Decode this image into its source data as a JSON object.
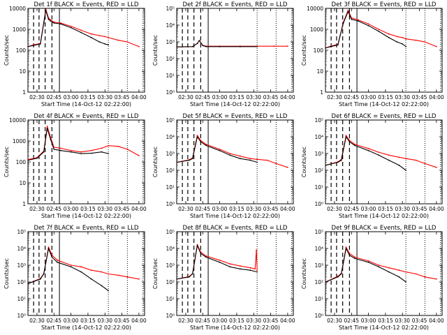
{
  "figure": {
    "title_suffix": "BLACK = Events, RED = LLD",
    "xlabel": "Start Time (14-Oct-12 02:22:00)",
    "ylabel": "Counts/sec",
    "x_ticks": [
      "02:30",
      "02:45",
      "03:00",
      "03:15",
      "03:30",
      "03:45",
      "04:00"
    ],
    "x_tick_hours": [
      2.5,
      2.75,
      3.0,
      3.25,
      3.5,
      3.75,
      4.0
    ],
    "x_range": [
      2.3667,
      4.0833
    ],
    "colors": {
      "events": "#000000",
      "lld": "#ff0000",
      "markers": "#000000"
    },
    "dashed_marker_times": [
      2.45,
      2.53,
      2.62,
      2.72
    ],
    "solid_marker_time": 2.83,
    "dotted_marker_times": [
      3.55,
      3.83,
      4.06
    ],
    "legend": {
      "events": "BLACK = Events",
      "lld": "RED = LLD"
    }
  },
  "chart_data": [
    {
      "type": "line",
      "title": "Det 1f BLACK = Events, RED = LLD",
      "ylim_log": [
        0,
        4
      ],
      "ytick_labels": [
        "1",
        "10",
        "100",
        "1000",
        "10000"
      ],
      "series": [
        {
          "name": "Events",
          "color": "#000000",
          "x": [
            2.37,
            2.45,
            2.55,
            2.6,
            2.63,
            2.67,
            2.7,
            2.75,
            2.85,
            3.0,
            3.15,
            3.3,
            3.42,
            3.5,
            3.55
          ],
          "y": [
            150,
            170,
            200,
            2000,
            8000,
            3000,
            2500,
            2000,
            1800,
            1200,
            700,
            400,
            250,
            200,
            180
          ]
        },
        {
          "name": "LLD",
          "color": "#ff0000",
          "x": [
            2.37,
            2.45,
            2.55,
            2.6,
            2.63,
            2.67,
            2.7,
            2.75,
            2.85,
            3.0,
            3.15,
            3.3,
            3.42,
            3.5,
            3.55,
            3.7,
            3.83,
            4.0
          ],
          "y": [
            150,
            180,
            210,
            2200,
            9000,
            3500,
            2800,
            2200,
            2000,
            1400,
            900,
            600,
            500,
            450,
            400,
            300,
            250,
            150
          ]
        }
      ]
    },
    {
      "type": "line",
      "title": "Det 2f BLACK = Events, RED = LLD",
      "ylim_log": [
        0,
        5
      ],
      "ytick_labels": [
        "10⁰",
        "10¹",
        "10²",
        "10³",
        "10⁴",
        "10⁵"
      ],
      "series": [
        {
          "name": "Events",
          "color": "#000000",
          "x": [
            2.37,
            2.6,
            2.67,
            2.7,
            2.75,
            2.8,
            3.0,
            3.3,
            3.55
          ],
          "y": [
            500,
            520,
            800,
            1200,
            600,
            520,
            520,
            520,
            520
          ]
        },
        {
          "name": "LLD",
          "color": "#ff0000",
          "x": [
            2.37,
            2.6,
            2.67,
            2.7,
            2.75,
            2.8,
            3.0,
            3.3,
            3.55,
            3.8,
            4.0
          ],
          "y": [
            500,
            520,
            800,
            1200,
            620,
            550,
            550,
            550,
            550,
            550,
            550
          ]
        }
      ]
    },
    {
      "type": "line",
      "title": "Det 3f BLACK = Events, RED = LLD",
      "ylim_log": [
        0,
        4
      ],
      "ytick_labels": [
        "1",
        "10",
        "100",
        "1000",
        "10000"
      ],
      "series": [
        {
          "name": "Events",
          "color": "#000000",
          "x": [
            2.37,
            2.45,
            2.55,
            2.63,
            2.7,
            2.75,
            2.85,
            3.0,
            3.15,
            3.3,
            3.42,
            3.5,
            3.55
          ],
          "y": [
            130,
            150,
            180,
            2000,
            7000,
            3000,
            2500,
            1500,
            800,
            400,
            250,
            200,
            150
          ]
        },
        {
          "name": "LLD",
          "color": "#ff0000",
          "x": [
            2.37,
            2.45,
            2.55,
            2.63,
            2.7,
            2.75,
            2.85,
            3.0,
            3.15,
            3.3,
            3.42,
            3.5,
            3.55,
            3.7,
            3.83,
            4.0
          ],
          "y": [
            130,
            160,
            190,
            2200,
            8000,
            3500,
            2800,
            1800,
            1000,
            600,
            450,
            400,
            350,
            300,
            250,
            150
          ]
        }
      ]
    },
    {
      "type": "line",
      "title": "Det 4f BLACK = Events, RED = LLD",
      "ylim_log": [
        0,
        4
      ],
      "ytick_labels": [
        "1",
        "10",
        "100",
        "1000",
        "10000"
      ],
      "series": [
        {
          "name": "Events",
          "color": "#000000",
          "x": [
            2.37,
            2.5,
            2.6,
            2.65,
            2.7,
            2.75,
            2.85,
            3.0,
            3.15,
            3.3,
            3.45,
            3.55
          ],
          "y": [
            120,
            150,
            300,
            4000,
            1200,
            400,
            350,
            300,
            250,
            260,
            300,
            250
          ]
        },
        {
          "name": "LLD",
          "color": "#ff0000",
          "x": [
            2.37,
            2.5,
            2.6,
            2.65,
            2.7,
            2.75,
            2.85,
            3.0,
            3.15,
            3.3,
            3.45,
            3.55,
            3.7,
            3.83,
            4.0
          ],
          "y": [
            130,
            160,
            330,
            5000,
            1500,
            500,
            450,
            350,
            300,
            350,
            450,
            600,
            550,
            400,
            200
          ]
        }
      ]
    },
    {
      "type": "line",
      "title": "Det 5f BLACK = Events, RED = LLD",
      "ylim_log": [
        0,
        5
      ],
      "ytick_labels": [
        "10⁰",
        "10¹",
        "10²",
        "10³",
        "10⁴",
        "10⁵"
      ],
      "series": [
        {
          "name": "Events",
          "color": "#000000",
          "x": [
            2.37,
            2.55,
            2.6,
            2.67,
            2.72,
            2.8,
            3.0,
            3.15,
            3.3,
            3.45,
            3.55
          ],
          "y": [
            300,
            400,
            500,
            10000,
            5000,
            3000,
            1500,
            800,
            500,
            400,
            300
          ]
        },
        {
          "name": "LLD",
          "color": "#ff0000",
          "x": [
            2.37,
            2.55,
            2.6,
            2.67,
            2.72,
            2.8,
            3.0,
            3.15,
            3.3,
            3.45,
            3.55,
            3.7,
            3.83,
            4.0
          ],
          "y": [
            300,
            420,
            550,
            12000,
            6000,
            3500,
            1800,
            1000,
            700,
            500,
            450,
            400,
            250,
            150
          ]
        }
      ]
    },
    {
      "type": "line",
      "title": "Det 6f BLACK = Events, RED = LLD",
      "ylim_log": [
        0,
        5
      ],
      "ytick_labels": [
        "10⁰",
        "10¹",
        "10²",
        "10³",
        "10⁴",
        "10⁵"
      ],
      "series": [
        {
          "name": "Events",
          "color": "#000000",
          "x": [
            2.37,
            2.55,
            2.6,
            2.67,
            2.72,
            2.8,
            3.0,
            3.15,
            3.3,
            3.45,
            3.55
          ],
          "y": [
            200,
            300,
            400,
            10000,
            5000,
            3000,
            1500,
            800,
            400,
            200,
            100
          ]
        },
        {
          "name": "LLD",
          "color": "#ff0000",
          "x": [
            2.37,
            2.55,
            2.6,
            2.67,
            2.72,
            2.8,
            3.0,
            3.15,
            3.3,
            3.45,
            3.55,
            3.7,
            3.83,
            4.0
          ],
          "y": [
            200,
            320,
            450,
            12000,
            6000,
            3500,
            2000,
            1200,
            800,
            600,
            500,
            400,
            250,
            150
          ]
        }
      ]
    },
    {
      "type": "line",
      "title": "Det 7f BLACK = Events, RED = LLD",
      "ylim_log": [
        0,
        5
      ],
      "ytick_labels": [
        "10⁰",
        "10¹",
        "10²",
        "10³",
        "10⁴",
        "10⁵"
      ],
      "series": [
        {
          "name": "Events",
          "color": "#000000",
          "x": [
            2.37,
            2.55,
            2.6,
            2.67,
            2.72,
            2.8,
            3.0,
            3.15,
            3.3,
            3.45,
            3.55
          ],
          "y": [
            80,
            150,
            300,
            10000,
            3000,
            1500,
            800,
            400,
            150,
            60,
            30
          ]
        },
        {
          "name": "LLD",
          "color": "#ff0000",
          "x": [
            2.37,
            2.55,
            2.6,
            2.67,
            2.72,
            2.8,
            3.0,
            3.15,
            3.3,
            3.45,
            3.55,
            3.7,
            3.83,
            4.0
          ],
          "y": [
            80,
            160,
            320,
            12000,
            4000,
            2000,
            1000,
            800,
            500,
            400,
            300,
            250,
            200,
            150
          ]
        }
      ]
    },
    {
      "type": "line",
      "title": "Det 8f BLACK = Events, RED = LLD",
      "ylim_log": [
        0,
        5
      ],
      "ytick_labels": [
        "10⁰",
        "10¹",
        "10²",
        "10³",
        "10⁴",
        "10⁵"
      ],
      "series": [
        {
          "name": "Events",
          "color": "#000000",
          "x": [
            2.37,
            2.55,
            2.6,
            2.67,
            2.72,
            2.8,
            3.0,
            3.15,
            3.3,
            3.45,
            3.55
          ],
          "y": [
            150,
            200,
            300,
            15000,
            5000,
            3000,
            1500,
            800,
            600,
            500,
            400
          ]
        },
        {
          "name": "LLD",
          "color": "#ff0000",
          "x": [
            2.37,
            2.55,
            2.6,
            2.67,
            2.72,
            2.8,
            3.0,
            3.15,
            3.3,
            3.45,
            3.52,
            3.54,
            3.55
          ],
          "y": [
            150,
            210,
            320,
            17000,
            6000,
            3500,
            2000,
            1200,
            900,
            700,
            600,
            8000,
            500
          ]
        }
      ]
    },
    {
      "type": "line",
      "title": "Det 9f BLACK = Events, RED = LLD",
      "ylim_log": [
        0,
        5
      ],
      "ytick_labels": [
        "10⁰",
        "10¹",
        "10²",
        "10³",
        "10⁴",
        "10⁵"
      ],
      "series": [
        {
          "name": "Events",
          "color": "#000000",
          "x": [
            2.37,
            2.55,
            2.6,
            2.67,
            2.72,
            2.8,
            3.0,
            3.15,
            3.3,
            3.45,
            3.55
          ],
          "y": [
            100,
            200,
            300,
            10000,
            4000,
            2500,
            1500,
            800,
            400,
            200,
            100
          ]
        },
        {
          "name": "LLD",
          "color": "#ff0000",
          "x": [
            2.37,
            2.55,
            2.6,
            2.67,
            2.72,
            2.8,
            3.0,
            3.15,
            3.3,
            3.45,
            3.55,
            3.7,
            3.83,
            4.0
          ],
          "y": [
            100,
            220,
            330,
            12000,
            5000,
            3000,
            1800,
            1000,
            700,
            500,
            400,
            300,
            200,
            150
          ]
        }
      ]
    }
  ]
}
